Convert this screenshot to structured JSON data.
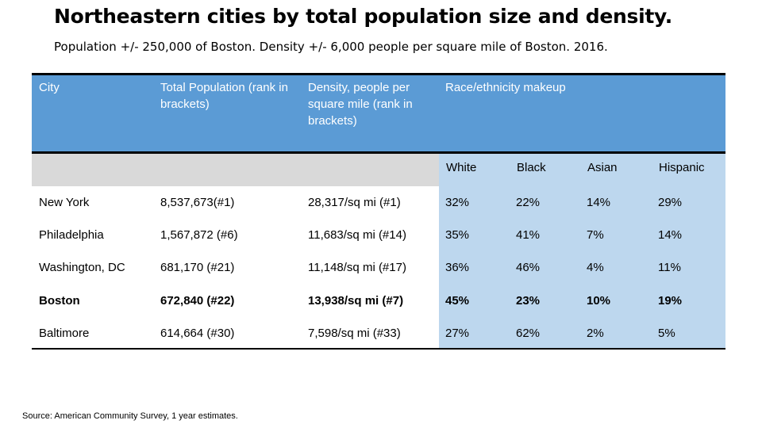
{
  "title": "Northeastern cities by total population size and density.",
  "subtitle": "Population +/- 250,000 of Boston. Density +/- 6,000 people per square mile of Boston. 2016.",
  "table": {
    "headers": {
      "city": "City",
      "population": "Total Population (rank in brackets)",
      "density": "Density, people per square mile (rank in brackets)",
      "race": "Race/ethnicity makeup"
    },
    "race_subheaders": [
      "White",
      "Black",
      "Asian",
      "Hispanic"
    ],
    "rows": [
      {
        "city": "New York",
        "population": "8,537,673(#1)",
        "density": "28,317/sq mi (#1)",
        "white": "32%",
        "black": "22%",
        "asian": "14%",
        "hispanic": "29%",
        "highlighted": false
      },
      {
        "city": "Philadelphia",
        "population": "1,567,872 (#6)",
        "density": "11,683/sq mi (#14)",
        "white": "35%",
        "black": "41%",
        "asian": "7%",
        "hispanic": "14%",
        "highlighted": false
      },
      {
        "city": "Washington, DC",
        "population": "681,170 (#21)",
        "density": "11,148/sq mi (#17)",
        "white": "36%",
        "black": "46%",
        "asian": "4%",
        "hispanic": "11%",
        "highlighted": false
      },
      {
        "city": "Boston",
        "population": "672,840 (#22)",
        "density": "13,938/sq mi (#7)",
        "white": "45%",
        "black": "23%",
        "asian": "10%",
        "hispanic": "19%",
        "highlighted": true
      },
      {
        "city": "Baltimore",
        "population": "614,664 (#30)",
        "density": "7,598/sq mi (#33)",
        "white": "27%",
        "black": "62%",
        "asian": "2%",
        "hispanic": "5%",
        "highlighted": false
      }
    ]
  },
  "source": "Source: American Community Survey, 1 year estimates.",
  "colors": {
    "header_blue": "#5b9bd5",
    "race_light_blue": "#bdd7ee",
    "subheader_gray": "#d9d9d9"
  }
}
